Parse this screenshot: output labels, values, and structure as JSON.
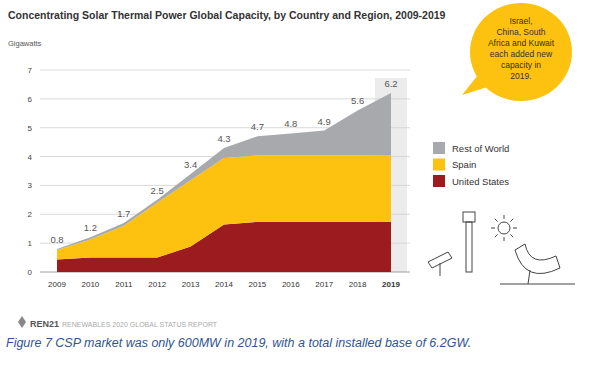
{
  "chart_data": {
    "type": "area",
    "title": "Concentrating Solar Thermal Power Global Capacity, by Country and Region, 2009-2019",
    "y_label": "Gigawatts",
    "categories": [
      "2009",
      "2010",
      "2011",
      "2012",
      "2013",
      "2014",
      "2015",
      "2016",
      "2017",
      "2018",
      "2019"
    ],
    "series": [
      {
        "name": "United States",
        "color": "#9b1b1f",
        "values": [
          0.43,
          0.5,
          0.5,
          0.5,
          0.88,
          1.65,
          1.74,
          1.74,
          1.74,
          1.74,
          1.74
        ]
      },
      {
        "name": "Spain",
        "color": "#fdc20f",
        "values": [
          0.33,
          0.63,
          1.1,
          1.9,
          2.3,
          2.3,
          2.3,
          2.3,
          2.3,
          2.3,
          2.3
        ]
      },
      {
        "name": "Rest of World",
        "color": "#a7a9ac",
        "values": [
          0.04,
          0.07,
          0.1,
          0.1,
          0.22,
          0.35,
          0.66,
          0.76,
          0.86,
          1.56,
          2.16
        ]
      }
    ],
    "totals": [
      0.8,
      1.2,
      1.7,
      2.5,
      3.4,
      4.3,
      4.7,
      4.8,
      4.9,
      5.6,
      6.2
    ],
    "ylim": [
      0,
      7
    ],
    "yticks": [
      0,
      1,
      2,
      3,
      4,
      5,
      6,
      7
    ],
    "grid": true,
    "stacked": true,
    "legend": "right",
    "annotation": [
      "Israel,",
      "China, South",
      "Africa and Kuwait",
      "each added new",
      "capacity in",
      "2019."
    ],
    "source": {
      "logo": "REN21",
      "report": "RENEWABLES 2020 GLOBAL STATUS REPORT"
    },
    "caption": "Figure 7 CSP market was only 600MW in 2019, with a total installed base of 6.2GW."
  }
}
